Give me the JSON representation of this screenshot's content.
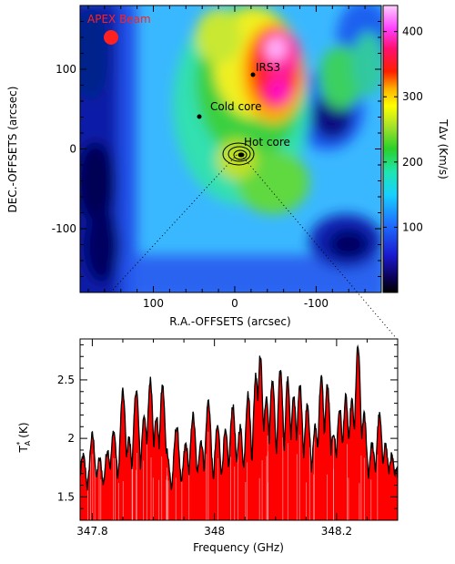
{
  "chart_data": [
    {
      "type": "heatmap",
      "title": "",
      "xlabel": "R.A.-OFFSETS (arcsec)",
      "ylabel": "DEC.-OFFSETS (arcsec)",
      "xlim": [
        190,
        -180
      ],
      "ylim": [
        -180,
        180
      ],
      "x_ticks": [
        100,
        0,
        -100
      ],
      "y_ticks": [
        100,
        0,
        -100
      ],
      "colorbar": {
        "label": "TΔv (Km/s)",
        "range": [
          0,
          440
        ],
        "ticks": [
          100,
          200,
          300,
          400
        ]
      },
      "beam_label": "APEX Beam",
      "annotations": [
        {
          "label": "IRS3",
          "x": -20,
          "y": 95
        },
        {
          "label": "Cold core",
          "x": 45,
          "y": 45
        },
        {
          "label": "Hot core",
          "x": 0,
          "y": -2
        }
      ],
      "colors": {
        "beam": "#ff2020",
        "background": "#ffffff"
      }
    },
    {
      "type": "area",
      "title": "",
      "xlabel": "Frequency (GHz)",
      "ylabel": "Tₐ* (K)",
      "ylabel_main": "T",
      "ylabel_sup": "*",
      "ylabel_sub": "A",
      "ylabel_unit": "(K)",
      "xlim": [
        347.78,
        348.3
      ],
      "ylim": [
        1.3,
        2.85
      ],
      "x_ticks": [
        "347.8",
        "348",
        "348.2"
      ],
      "x_tick_values": [
        347.8,
        348.0,
        348.2
      ],
      "y_ticks": [
        "1.5",
        "2",
        "2.5"
      ],
      "y_tick_values": [
        1.5,
        2.0,
        2.5
      ],
      "fill_color": "#ff0000",
      "line_color": "#000000",
      "peaks": [
        {
          "x": 347.785,
          "y": 1.85
        },
        {
          "x": 347.8,
          "y": 2.03
        },
        {
          "x": 347.812,
          "y": 1.82
        },
        {
          "x": 347.825,
          "y": 1.9
        },
        {
          "x": 347.835,
          "y": 2.06
        },
        {
          "x": 347.85,
          "y": 2.4
        },
        {
          "x": 347.86,
          "y": 2.0
        },
        {
          "x": 347.872,
          "y": 2.42
        },
        {
          "x": 347.885,
          "y": 2.2
        },
        {
          "x": 347.895,
          "y": 2.5
        },
        {
          "x": 347.905,
          "y": 2.18
        },
        {
          "x": 347.915,
          "y": 2.45
        },
        {
          "x": 347.922,
          "y": 1.9
        },
        {
          "x": 347.938,
          "y": 2.1
        },
        {
          "x": 347.953,
          "y": 1.95
        },
        {
          "x": 347.965,
          "y": 2.2
        },
        {
          "x": 347.978,
          "y": 1.98
        },
        {
          "x": 347.99,
          "y": 2.32
        },
        {
          "x": 348.005,
          "y": 2.1
        },
        {
          "x": 348.018,
          "y": 2.05
        },
        {
          "x": 348.03,
          "y": 2.28
        },
        {
          "x": 348.042,
          "y": 2.1
        },
        {
          "x": 348.055,
          "y": 2.38
        },
        {
          "x": 348.068,
          "y": 2.55
        },
        {
          "x": 348.075,
          "y": 2.7
        },
        {
          "x": 348.085,
          "y": 2.35
        },
        {
          "x": 348.095,
          "y": 2.5
        },
        {
          "x": 348.108,
          "y": 2.58
        },
        {
          "x": 348.12,
          "y": 2.5
        },
        {
          "x": 348.13,
          "y": 2.35
        },
        {
          "x": 348.14,
          "y": 2.45
        },
        {
          "x": 348.152,
          "y": 2.3
        },
        {
          "x": 348.165,
          "y": 2.1
        },
        {
          "x": 348.175,
          "y": 2.52
        },
        {
          "x": 348.185,
          "y": 2.45
        },
        {
          "x": 348.195,
          "y": 2.05
        },
        {
          "x": 348.205,
          "y": 2.25
        },
        {
          "x": 348.215,
          "y": 2.35
        },
        {
          "x": 348.225,
          "y": 2.32
        },
        {
          "x": 348.235,
          "y": 2.78
        },
        {
          "x": 348.245,
          "y": 2.2
        },
        {
          "x": 348.258,
          "y": 1.95
        },
        {
          "x": 348.27,
          "y": 2.2
        },
        {
          "x": 348.28,
          "y": 1.95
        },
        {
          "x": 348.29,
          "y": 1.85
        },
        {
          "x": 348.298,
          "y": 1.72
        }
      ],
      "baseline": 1.45
    }
  ]
}
